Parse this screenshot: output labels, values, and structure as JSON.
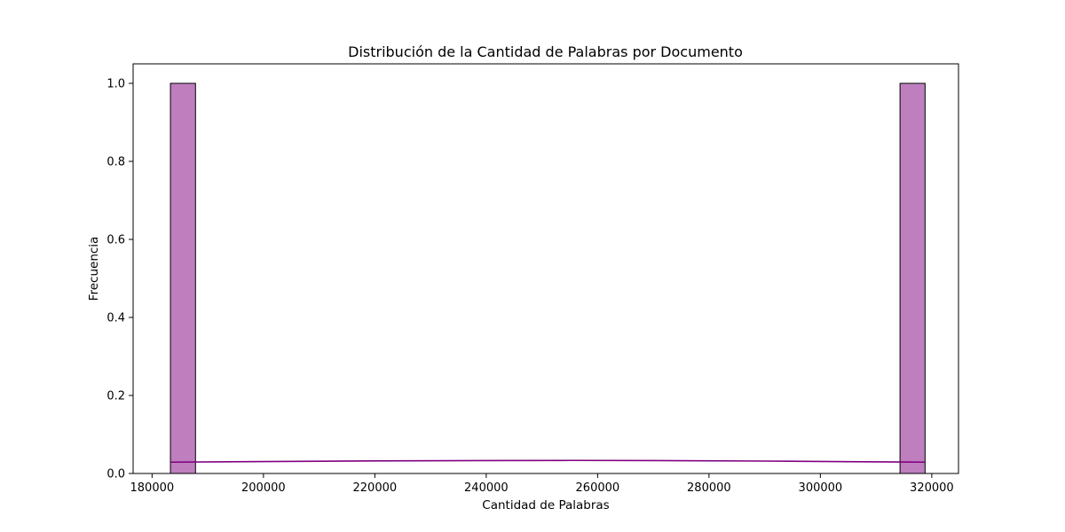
{
  "chart_data": {
    "type": "bar",
    "title": "Distribución de la Cantidad de Palabras por Documento",
    "xlabel": "Cantidad de Palabras",
    "ylabel": "Frecuencia",
    "xlim": [
      176600,
      324800
    ],
    "ylim": [
      0,
      1.05
    ],
    "x_ticks": [
      180000,
      200000,
      220000,
      240000,
      260000,
      280000,
      300000,
      320000
    ],
    "x_tick_labels": [
      "180000",
      "200000",
      "220000",
      "240000",
      "260000",
      "280000",
      "300000",
      "320000"
    ],
    "y_ticks": [
      0.0,
      0.2,
      0.4,
      0.6,
      0.8,
      1.0
    ],
    "y_tick_labels": [
      "0.0",
      "0.2",
      "0.4",
      "0.6",
      "0.8",
      "1.0"
    ],
    "bars": [
      {
        "x0": 183300,
        "x1": 187800,
        "value": 1.0
      },
      {
        "x0": 314300,
        "x1": 318800,
        "value": 1.0
      }
    ],
    "kde": {
      "x": [
        183300,
        200000,
        220000,
        240000,
        255000,
        270000,
        290000,
        305000,
        318800
      ],
      "y": [
        0.029,
        0.0305,
        0.0322,
        0.0332,
        0.0335,
        0.0331,
        0.0318,
        0.0302,
        0.029
      ]
    },
    "grid": false,
    "colors": {
      "bar_fill": "#bf7fbf",
      "bar_edge": "#000000",
      "kde_line": "#800080"
    }
  }
}
